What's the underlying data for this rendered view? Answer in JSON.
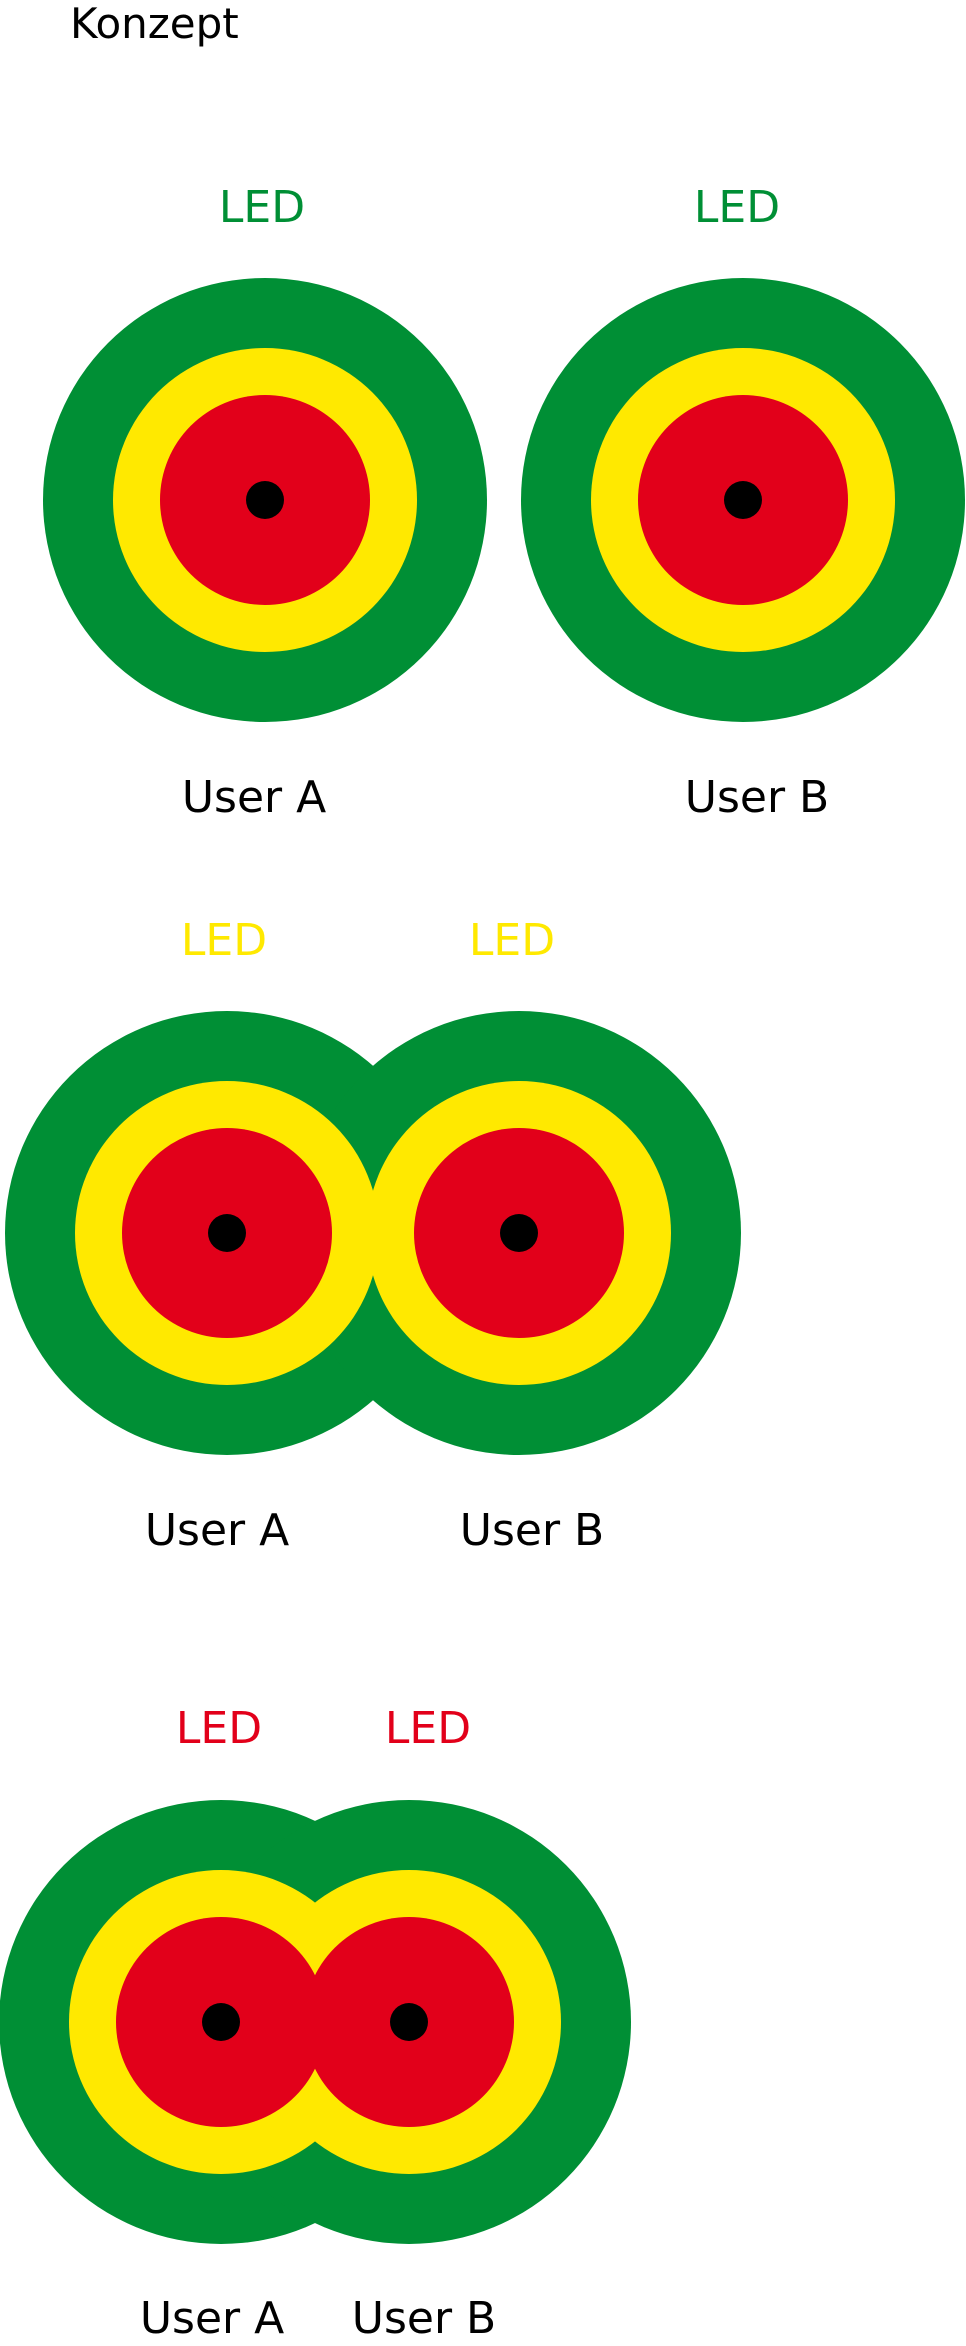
{
  "title": "Konzept",
  "colors": {
    "green": "#008f35",
    "yellow": "#ffe900",
    "red": "#e2001a",
    "center": "#000000",
    "text": "#000000"
  },
  "scenarios": [
    {
      "led_color": "green",
      "users": [
        {
          "led_label": "LED",
          "user_label": "User A"
        },
        {
          "led_label": "LED",
          "user_label": "User B"
        }
      ]
    },
    {
      "led_color": "yellow",
      "users": [
        {
          "led_label": "LED",
          "user_label": "User A"
        },
        {
          "led_label": "LED",
          "user_label": "User B"
        }
      ]
    },
    {
      "led_color": "red",
      "users": [
        {
          "led_label": "LED",
          "user_label": "User A"
        },
        {
          "led_label": "LED",
          "user_label": "User B"
        }
      ]
    }
  ]
}
